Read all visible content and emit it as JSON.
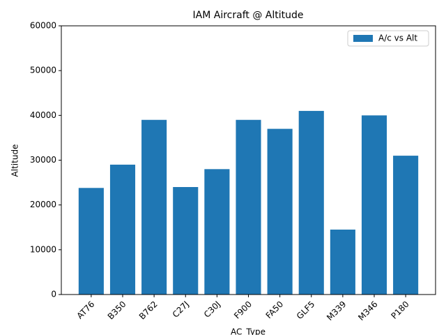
{
  "chart_data": {
    "type": "bar",
    "title": "IAM Aircraft @ Altitude",
    "x_label": "AC_Type",
    "y_label": "Altitude",
    "categories": [
      "AT76",
      "B350",
      "B762",
      "C27J",
      "C30J",
      "F900",
      "FA50",
      "GLF5",
      "M339",
      "M346",
      "P180"
    ],
    "series": [
      {
        "name": "A/c vs Alt",
        "color": "#1f77b4",
        "values": [
          23800,
          29000,
          39000,
          24000,
          28000,
          39000,
          37000,
          41000,
          14500,
          40000,
          31000
        ]
      }
    ],
    "ylim": [
      0,
      60000
    ],
    "yticks": [
      0,
      10000,
      20000,
      30000,
      40000,
      50000,
      60000
    ],
    "legend": "upper right"
  }
}
